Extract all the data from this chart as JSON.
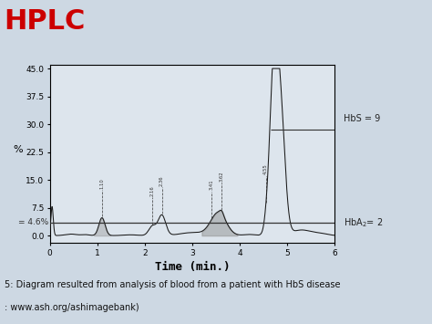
{
  "title": "HPLC",
  "title_color": "#cc0000",
  "title_fontsize": 22,
  "xlabel": "Time (min.)",
  "xlabel_fontsize": 9,
  "ylabel": "%",
  "ylabel_fontsize": 8,
  "xlim": [
    0,
    6
  ],
  "ylim": [
    -2,
    46
  ],
  "yticks": [
    0.0,
    7.5,
    15.0,
    22.5,
    30.0,
    37.5,
    45.0
  ],
  "xticks": [
    0,
    1,
    2,
    3,
    4,
    5,
    6
  ],
  "bg_color": "#cdd8e3",
  "plot_bg_color": "#dde5ed",
  "line_color": "#1a1a1a",
  "hbs_level": 28.5,
  "hba2_level": 3.5,
  "hbs_label": "HbS = 9",
  "hbs_line_x": 5.05,
  "annotation_color": "#333333",
  "peak1_x": 1.1,
  "peak2_x": 2.16,
  "peak3_x": 2.36,
  "peak4_x": 3.41,
  "peak5_x": 3.62,
  "peak6_x": 4.55,
  "subtitle": "5: Diagram resulted from analysis of blood from a patient with HbS disease",
  "source": ": www.ash.org/ashimagebank)",
  "subtitle_fontsize": 7,
  "hline_label": "= 4.6%",
  "hline_color": "#333333"
}
